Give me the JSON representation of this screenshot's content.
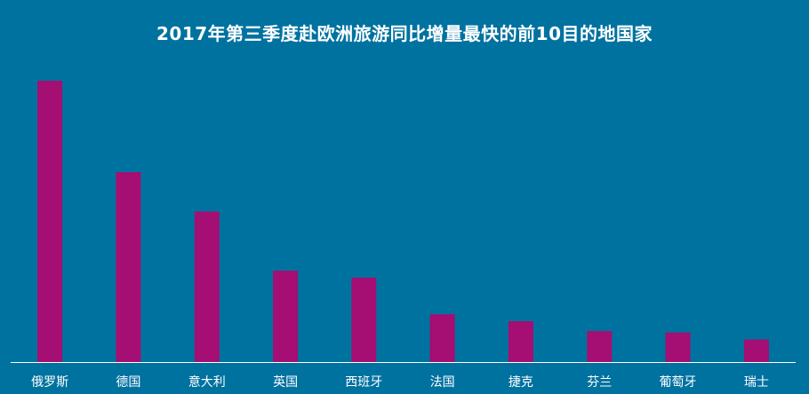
{
  "chart_data": {
    "type": "bar",
    "title": "2017年第三季度赴欧洲旅游同比增量最快的前10目的地国家",
    "categories": [
      "俄罗斯",
      "德国",
      "意大利",
      "英国",
      "西班牙",
      "法国",
      "捷克",
      "芬兰",
      "葡萄牙",
      "瑞士"
    ],
    "values": [
      100,
      67.5,
      53.5,
      32.5,
      30,
      17,
      14.5,
      11,
      10.5,
      8
    ],
    "ylim": [
      0,
      100
    ],
    "xlabel": "",
    "ylabel": "",
    "grid": false,
    "legend": "none"
  },
  "colors": {
    "background": "#0072a0",
    "bar": "#a50e72",
    "axis": "#ffffff",
    "text": "#ffffff"
  }
}
